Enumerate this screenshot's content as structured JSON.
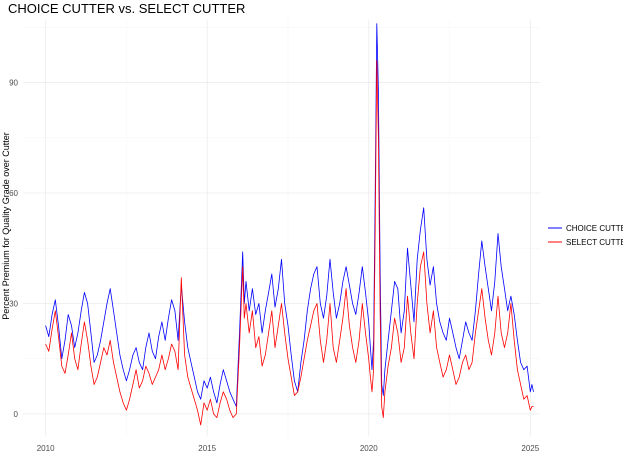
{
  "chart_data": {
    "type": "line",
    "title": "CHOICE CUTTER vs. SELECT CUTTER",
    "xlabel": "",
    "ylabel": "Percent Premium for Quality Grade over Cutter",
    "xlim": [
      2009.3,
      2025.3
    ],
    "ylim": [
      -6,
      107
    ],
    "x_ticks": [
      2010,
      2015,
      2020,
      2025
    ],
    "y_ticks": [
      0,
      30,
      60,
      90
    ],
    "grid": true,
    "legend_position": "right",
    "series": [
      {
        "name": "CHOICE CUTTER",
        "color": "#0000ff",
        "points": [
          [
            2010.0,
            24
          ],
          [
            2010.1,
            21
          ],
          [
            2010.2,
            27
          ],
          [
            2010.3,
            31
          ],
          [
            2010.4,
            24
          ],
          [
            2010.5,
            15
          ],
          [
            2010.6,
            20
          ],
          [
            2010.7,
            27
          ],
          [
            2010.8,
            24
          ],
          [
            2010.9,
            18
          ],
          [
            2011.0,
            22
          ],
          [
            2011.1,
            28
          ],
          [
            2011.2,
            33
          ],
          [
            2011.3,
            30
          ],
          [
            2011.4,
            22
          ],
          [
            2011.5,
            14
          ],
          [
            2011.6,
            16
          ],
          [
            2011.7,
            20
          ],
          [
            2011.8,
            25
          ],
          [
            2011.9,
            30
          ],
          [
            2012.0,
            34
          ],
          [
            2012.1,
            28
          ],
          [
            2012.2,
            22
          ],
          [
            2012.3,
            16
          ],
          [
            2012.4,
            12
          ],
          [
            2012.5,
            9
          ],
          [
            2012.6,
            12
          ],
          [
            2012.7,
            16
          ],
          [
            2012.8,
            18
          ],
          [
            2012.9,
            14
          ],
          [
            2013.0,
            12
          ],
          [
            2013.1,
            18
          ],
          [
            2013.2,
            22
          ],
          [
            2013.3,
            17
          ],
          [
            2013.4,
            15
          ],
          [
            2013.5,
            21
          ],
          [
            2013.6,
            25
          ],
          [
            2013.7,
            20
          ],
          [
            2013.8,
            26
          ],
          [
            2013.9,
            31
          ],
          [
            2014.0,
            28
          ],
          [
            2014.1,
            20
          ],
          [
            2014.2,
            35
          ],
          [
            2014.3,
            25
          ],
          [
            2014.4,
            18
          ],
          [
            2014.5,
            14
          ],
          [
            2014.6,
            10
          ],
          [
            2014.7,
            6
          ],
          [
            2014.8,
            4
          ],
          [
            2014.9,
            9
          ],
          [
            2015.0,
            7
          ],
          [
            2015.1,
            10
          ],
          [
            2015.2,
            6
          ],
          [
            2015.3,
            3
          ],
          [
            2015.4,
            8
          ],
          [
            2015.5,
            12
          ],
          [
            2015.6,
            9
          ],
          [
            2015.7,
            6
          ],
          [
            2015.8,
            4
          ],
          [
            2015.9,
            2
          ],
          [
            2016.0,
            22
          ],
          [
            2016.1,
            44
          ],
          [
            2016.15,
            30
          ],
          [
            2016.2,
            36
          ],
          [
            2016.3,
            28
          ],
          [
            2016.4,
            34
          ],
          [
            2016.5,
            27
          ],
          [
            2016.6,
            30
          ],
          [
            2016.7,
            22
          ],
          [
            2016.8,
            28
          ],
          [
            2016.9,
            33
          ],
          [
            2017.0,
            38
          ],
          [
            2017.1,
            29
          ],
          [
            2017.2,
            34
          ],
          [
            2017.3,
            42
          ],
          [
            2017.4,
            30
          ],
          [
            2017.5,
            24
          ],
          [
            2017.6,
            16
          ],
          [
            2017.7,
            9
          ],
          [
            2017.8,
            6
          ],
          [
            2017.9,
            14
          ],
          [
            2018.0,
            20
          ],
          [
            2018.1,
            28
          ],
          [
            2018.2,
            34
          ],
          [
            2018.3,
            38
          ],
          [
            2018.4,
            40
          ],
          [
            2018.5,
            30
          ],
          [
            2018.6,
            26
          ],
          [
            2018.7,
            32
          ],
          [
            2018.8,
            42
          ],
          [
            2018.9,
            33
          ],
          [
            2019.0,
            26
          ],
          [
            2019.1,
            30
          ],
          [
            2019.2,
            36
          ],
          [
            2019.3,
            40
          ],
          [
            2019.4,
            35
          ],
          [
            2019.5,
            30
          ],
          [
            2019.6,
            27
          ],
          [
            2019.7,
            33
          ],
          [
            2019.8,
            40
          ],
          [
            2019.9,
            33
          ],
          [
            2020.0,
            25
          ],
          [
            2020.05,
            18
          ],
          [
            2020.1,
            12
          ],
          [
            2020.15,
            20
          ],
          [
            2020.2,
            60
          ],
          [
            2020.25,
            106
          ],
          [
            2020.3,
            88
          ],
          [
            2020.35,
            40
          ],
          [
            2020.4,
            8
          ],
          [
            2020.45,
            5
          ],
          [
            2020.5,
            12
          ],
          [
            2020.6,
            20
          ],
          [
            2020.7,
            28
          ],
          [
            2020.8,
            36
          ],
          [
            2020.9,
            34
          ],
          [
            2021.0,
            22
          ],
          [
            2021.1,
            28
          ],
          [
            2021.2,
            45
          ],
          [
            2021.3,
            35
          ],
          [
            2021.4,
            25
          ],
          [
            2021.5,
            42
          ],
          [
            2021.6,
            50
          ],
          [
            2021.7,
            56
          ],
          [
            2021.8,
            42
          ],
          [
            2021.9,
            35
          ],
          [
            2022.0,
            40
          ],
          [
            2022.1,
            30
          ],
          [
            2022.2,
            25
          ],
          [
            2022.3,
            22
          ],
          [
            2022.4,
            20
          ],
          [
            2022.5,
            26
          ],
          [
            2022.6,
            22
          ],
          [
            2022.7,
            18
          ],
          [
            2022.8,
            15
          ],
          [
            2022.9,
            20
          ],
          [
            2023.0,
            25
          ],
          [
            2023.1,
            22
          ],
          [
            2023.2,
            20
          ],
          [
            2023.3,
            28
          ],
          [
            2023.4,
            38
          ],
          [
            2023.5,
            47
          ],
          [
            2023.6,
            40
          ],
          [
            2023.7,
            34
          ],
          [
            2023.8,
            28
          ],
          [
            2023.9,
            36
          ],
          [
            2024.0,
            49
          ],
          [
            2024.1,
            40
          ],
          [
            2024.2,
            34
          ],
          [
            2024.3,
            28
          ],
          [
            2024.4,
            32
          ],
          [
            2024.5,
            27
          ],
          [
            2024.6,
            20
          ],
          [
            2024.7,
            14
          ],
          [
            2024.8,
            12
          ],
          [
            2024.9,
            13
          ],
          [
            2025.0,
            6
          ],
          [
            2025.05,
            8
          ],
          [
            2025.1,
            6
          ]
        ]
      },
      {
        "name": "SELECT CUTTER",
        "color": "#ff0000",
        "points": [
          [
            2010.0,
            19
          ],
          [
            2010.1,
            17
          ],
          [
            2010.2,
            23
          ],
          [
            2010.3,
            28
          ],
          [
            2010.4,
            21
          ],
          [
            2010.5,
            13
          ],
          [
            2010.6,
            11
          ],
          [
            2010.7,
            16
          ],
          [
            2010.8,
            22
          ],
          [
            2010.9,
            15
          ],
          [
            2011.0,
            12
          ],
          [
            2011.1,
            19
          ],
          [
            2011.2,
            25
          ],
          [
            2011.3,
            20
          ],
          [
            2011.4,
            13
          ],
          [
            2011.5,
            8
          ],
          [
            2011.6,
            10
          ],
          [
            2011.7,
            14
          ],
          [
            2011.8,
            18
          ],
          [
            2011.9,
            16
          ],
          [
            2012.0,
            20
          ],
          [
            2012.1,
            14
          ],
          [
            2012.2,
            10
          ],
          [
            2012.3,
            6
          ],
          [
            2012.4,
            3
          ],
          [
            2012.5,
            1
          ],
          [
            2012.6,
            4
          ],
          [
            2012.7,
            8
          ],
          [
            2012.8,
            12
          ],
          [
            2012.9,
            7
          ],
          [
            2013.0,
            9
          ],
          [
            2013.1,
            13
          ],
          [
            2013.2,
            11
          ],
          [
            2013.3,
            8
          ],
          [
            2013.4,
            10
          ],
          [
            2013.5,
            12
          ],
          [
            2013.6,
            16
          ],
          [
            2013.7,
            12
          ],
          [
            2013.8,
            15
          ],
          [
            2013.9,
            19
          ],
          [
            2014.0,
            17
          ],
          [
            2014.1,
            12
          ],
          [
            2014.2,
            37
          ],
          [
            2014.3,
            16
          ],
          [
            2014.4,
            10
          ],
          [
            2014.5,
            7
          ],
          [
            2014.6,
            4
          ],
          [
            2014.7,
            1
          ],
          [
            2014.8,
            -3
          ],
          [
            2014.9,
            3
          ],
          [
            2015.0,
            1
          ],
          [
            2015.1,
            4
          ],
          [
            2015.2,
            0
          ],
          [
            2015.3,
            -1
          ],
          [
            2015.4,
            3
          ],
          [
            2015.5,
            6
          ],
          [
            2015.6,
            4
          ],
          [
            2015.7,
            1
          ],
          [
            2015.8,
            -1
          ],
          [
            2015.9,
            0
          ],
          [
            2016.0,
            18
          ],
          [
            2016.1,
            40
          ],
          [
            2016.15,
            26
          ],
          [
            2016.2,
            30
          ],
          [
            2016.3,
            22
          ],
          [
            2016.4,
            28
          ],
          [
            2016.5,
            18
          ],
          [
            2016.6,
            21
          ],
          [
            2016.7,
            13
          ],
          [
            2016.8,
            16
          ],
          [
            2016.9,
            22
          ],
          [
            2017.0,
            28
          ],
          [
            2017.1,
            18
          ],
          [
            2017.2,
            24
          ],
          [
            2017.3,
            30
          ],
          [
            2017.4,
            22
          ],
          [
            2017.5,
            15
          ],
          [
            2017.6,
            10
          ],
          [
            2017.7,
            5
          ],
          [
            2017.8,
            6
          ],
          [
            2017.9,
            10
          ],
          [
            2018.0,
            15
          ],
          [
            2018.1,
            20
          ],
          [
            2018.2,
            24
          ],
          [
            2018.3,
            28
          ],
          [
            2018.4,
            30
          ],
          [
            2018.5,
            20
          ],
          [
            2018.6,
            14
          ],
          [
            2018.7,
            20
          ],
          [
            2018.8,
            30
          ],
          [
            2018.9,
            18
          ],
          [
            2019.0,
            14
          ],
          [
            2019.1,
            20
          ],
          [
            2019.2,
            26
          ],
          [
            2019.3,
            34
          ],
          [
            2019.4,
            24
          ],
          [
            2019.5,
            18
          ],
          [
            2019.6,
            14
          ],
          [
            2019.7,
            20
          ],
          [
            2019.8,
            30
          ],
          [
            2019.9,
            22
          ],
          [
            2020.0,
            15
          ],
          [
            2020.05,
            10
          ],
          [
            2020.1,
            6
          ],
          [
            2020.15,
            12
          ],
          [
            2020.2,
            50
          ],
          [
            2020.25,
            96
          ],
          [
            2020.3,
            75
          ],
          [
            2020.35,
            28
          ],
          [
            2020.4,
            2
          ],
          [
            2020.45,
            -1
          ],
          [
            2020.5,
            6
          ],
          [
            2020.6,
            13
          ],
          [
            2020.7,
            18
          ],
          [
            2020.8,
            26
          ],
          [
            2020.9,
            22
          ],
          [
            2021.0,
            14
          ],
          [
            2021.1,
            18
          ],
          [
            2021.2,
            32
          ],
          [
            2021.3,
            22
          ],
          [
            2021.4,
            15
          ],
          [
            2021.5,
            30
          ],
          [
            2021.6,
            40
          ],
          [
            2021.7,
            44
          ],
          [
            2021.8,
            30
          ],
          [
            2021.9,
            22
          ],
          [
            2022.0,
            28
          ],
          [
            2022.1,
            18
          ],
          [
            2022.2,
            14
          ],
          [
            2022.3,
            10
          ],
          [
            2022.4,
            12
          ],
          [
            2022.5,
            16
          ],
          [
            2022.6,
            12
          ],
          [
            2022.7,
            8
          ],
          [
            2022.8,
            10
          ],
          [
            2022.9,
            14
          ],
          [
            2023.0,
            16
          ],
          [
            2023.1,
            12
          ],
          [
            2023.2,
            14
          ],
          [
            2023.3,
            22
          ],
          [
            2023.4,
            28
          ],
          [
            2023.5,
            34
          ],
          [
            2023.6,
            26
          ],
          [
            2023.7,
            20
          ],
          [
            2023.8,
            16
          ],
          [
            2023.9,
            22
          ],
          [
            2024.0,
            32
          ],
          [
            2024.1,
            22
          ],
          [
            2024.2,
            18
          ],
          [
            2024.3,
            22
          ],
          [
            2024.4,
            30
          ],
          [
            2024.5,
            20
          ],
          [
            2024.6,
            12
          ],
          [
            2024.7,
            8
          ],
          [
            2024.8,
            4
          ],
          [
            2024.9,
            5
          ],
          [
            2025.0,
            1
          ],
          [
            2025.05,
            2
          ],
          [
            2025.1,
            2
          ]
        ]
      }
    ]
  }
}
